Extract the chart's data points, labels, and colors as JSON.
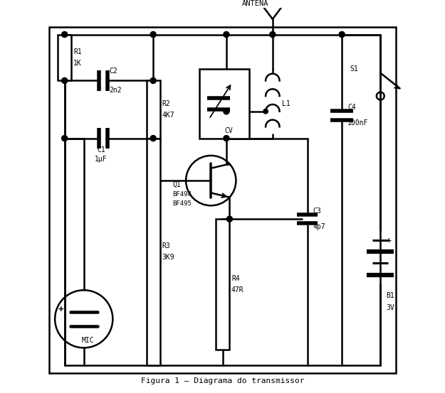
{
  "title": "Figura 1 – Diagrama do transmissor",
  "bg": "#ffffff",
  "lw": 1.8,
  "components": {
    "R1": {
      "label": "R1",
      "val": "1K"
    },
    "R2": {
      "label": "R2",
      "val": "4K7"
    },
    "R3": {
      "label": "R3",
      "val": "3K9"
    },
    "R4": {
      "label": "R4",
      "val": "47R"
    },
    "C1": {
      "label": "C1",
      "val": "1μF"
    },
    "C2": {
      "label": "C2",
      "val": "2n2"
    },
    "C3": {
      "label": "C3",
      "val": "4p7"
    },
    "C4": {
      "label": "C4",
      "val": "100nF"
    },
    "CV": {
      "label": "CV"
    },
    "L1": {
      "label": "L1"
    },
    "Q1": {
      "label": "Q1",
      "val": "BF494\nBF495"
    },
    "B1": {
      "label": "B1",
      "val": "3V"
    },
    "S1": {
      "label": "S1"
    },
    "ANTENA": {
      "label": "ANTENA"
    },
    "MIC": {
      "label": "MIC"
    }
  }
}
